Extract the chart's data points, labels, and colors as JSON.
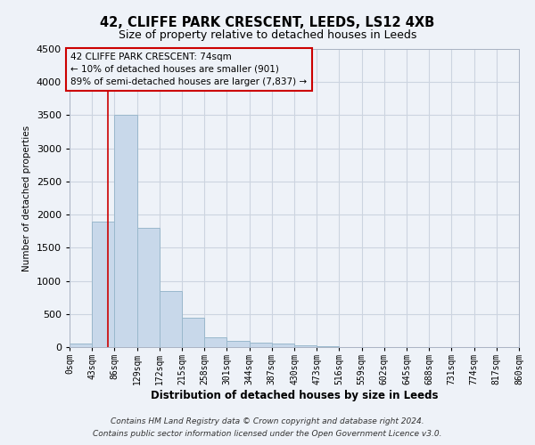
{
  "title1": "42, CLIFFE PARK CRESCENT, LEEDS, LS12 4XB",
  "title2": "Size of property relative to detached houses in Leeds",
  "xlabel": "Distribution of detached houses by size in Leeds",
  "ylabel": "Number of detached properties",
  "footnote1": "Contains HM Land Registry data © Crown copyright and database right 2024.",
  "footnote2": "Contains public sector information licensed under the Open Government Licence v3.0.",
  "annotation_line1": "42 CLIFFE PARK CRESCENT: 74sqm",
  "annotation_line2": "← 10% of detached houses are smaller (901)",
  "annotation_line3": "89% of semi-detached houses are larger (7,837) →",
  "bar_color": "#c8d8ea",
  "bar_edge_color": "#9ab8cc",
  "grid_color": "#ccd4e0",
  "red_line_color": "#cc0000",
  "annotation_box_edge_color": "#cc0000",
  "background_color": "#eef2f8",
  "bin_edges": [
    0,
    43,
    86,
    129,
    172,
    215,
    258,
    301,
    344,
    387,
    430,
    473,
    516,
    559,
    602,
    645,
    688,
    731,
    774,
    817,
    860
  ],
  "bar_heights": [
    50,
    1900,
    3500,
    1800,
    850,
    450,
    150,
    90,
    70,
    50,
    30,
    20,
    0,
    0,
    0,
    0,
    0,
    0,
    0,
    0
  ],
  "red_line_x": 74,
  "ylim": [
    0,
    4500
  ],
  "yticks": [
    0,
    500,
    1000,
    1500,
    2000,
    2500,
    3000,
    3500,
    4000,
    4500
  ]
}
